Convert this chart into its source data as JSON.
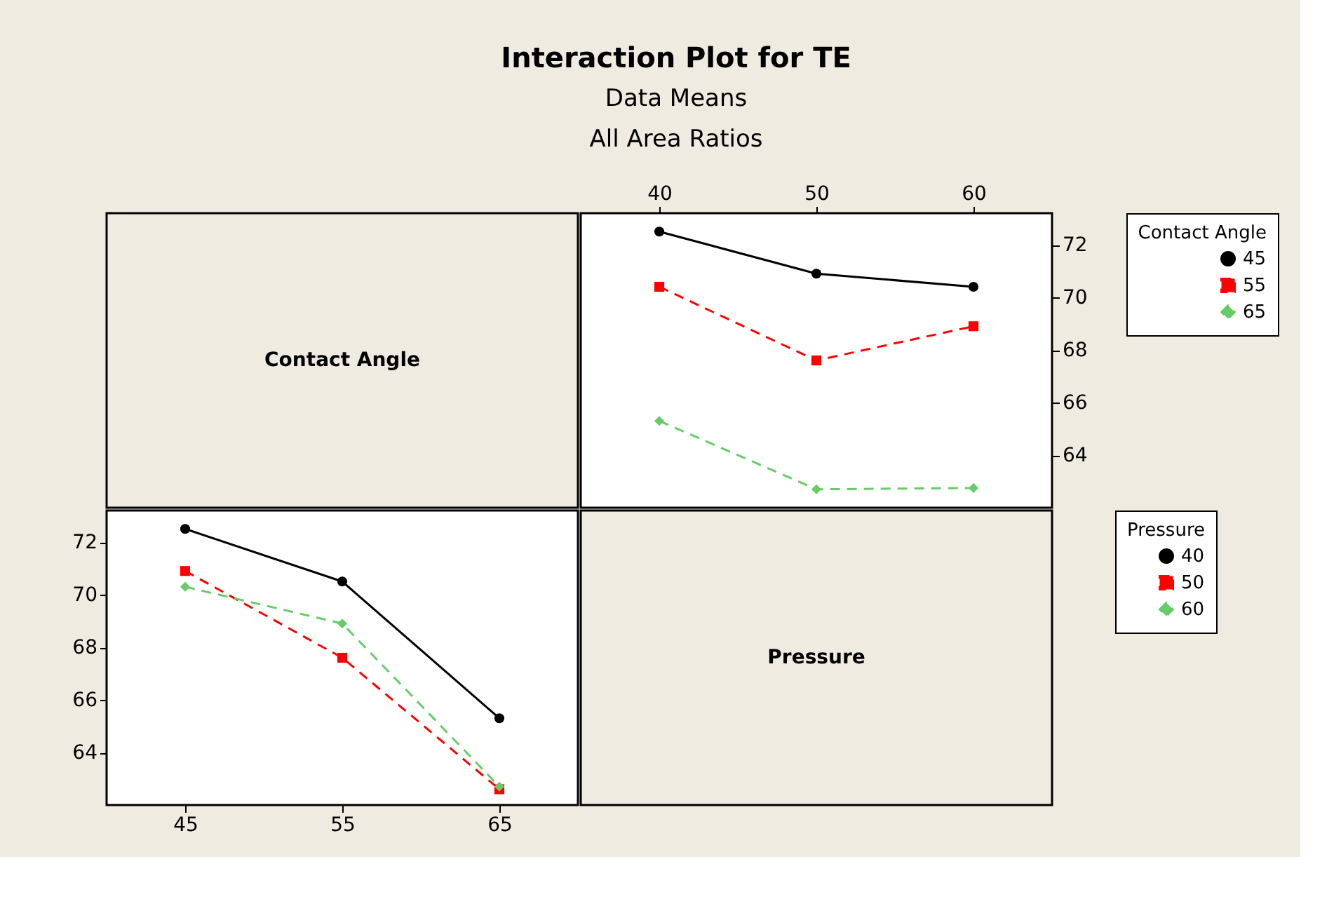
{
  "chart_data": [
    {
      "type": "other",
      "title": "Interaction Plot for TE",
      "subtitle": "Data Means",
      "annotations": [
        "All Area Ratios"
      ]
    },
    {
      "type": "other",
      "annotations": [
        "Contact Angle"
      ]
    },
    {
      "type": "line",
      "x": [
        40,
        50,
        60
      ],
      "xlim": [
        35,
        65
      ],
      "xticks": [
        40,
        50,
        60
      ],
      "ylim": [
        62,
        73.2
      ],
      "yticks": [
        64,
        66,
        68,
        70,
        72
      ],
      "legend": "right",
      "legend_title": "Contact Angle",
      "grid": false,
      "series": [
        {
          "name": "45",
          "color": "#000000",
          "marker": "circle",
          "line_style": "solid",
          "values": [
            72.5,
            70.9,
            70.4
          ]
        },
        {
          "name": "55",
          "color": "#ff0000",
          "marker": "square",
          "line_style": "dashed",
          "values": [
            70.4,
            67.6,
            68.9
          ]
        },
        {
          "name": "65",
          "color": "#66cc66",
          "marker": "diamond",
          "line_style": "dashed",
          "values": [
            65.3,
            62.7,
            62.75
          ]
        }
      ]
    },
    {
      "type": "line",
      "x": [
        45,
        55,
        65
      ],
      "xlim": [
        40,
        70
      ],
      "xticks": [
        45,
        55,
        65
      ],
      "ylim": [
        62,
        73.2
      ],
      "yticks": [
        64,
        66,
        68,
        70,
        72
      ],
      "legend": "right",
      "legend_title": "Pressure",
      "grid": false,
      "series": [
        {
          "name": "40",
          "color": "#000000",
          "marker": "circle",
          "line_style": "solid",
          "values": [
            72.5,
            70.5,
            65.3
          ]
        },
        {
          "name": "50",
          "color": "#ff0000",
          "marker": "square",
          "line_style": "dashed",
          "values": [
            70.9,
            67.6,
            62.6
          ]
        },
        {
          "name": "60",
          "color": "#66cc66",
          "marker": "diamond",
          "line_style": "dashed",
          "values": [
            70.3,
            68.9,
            62.7
          ]
        }
      ]
    },
    {
      "type": "other",
      "annotations": [
        "Pressure"
      ]
    }
  ]
}
